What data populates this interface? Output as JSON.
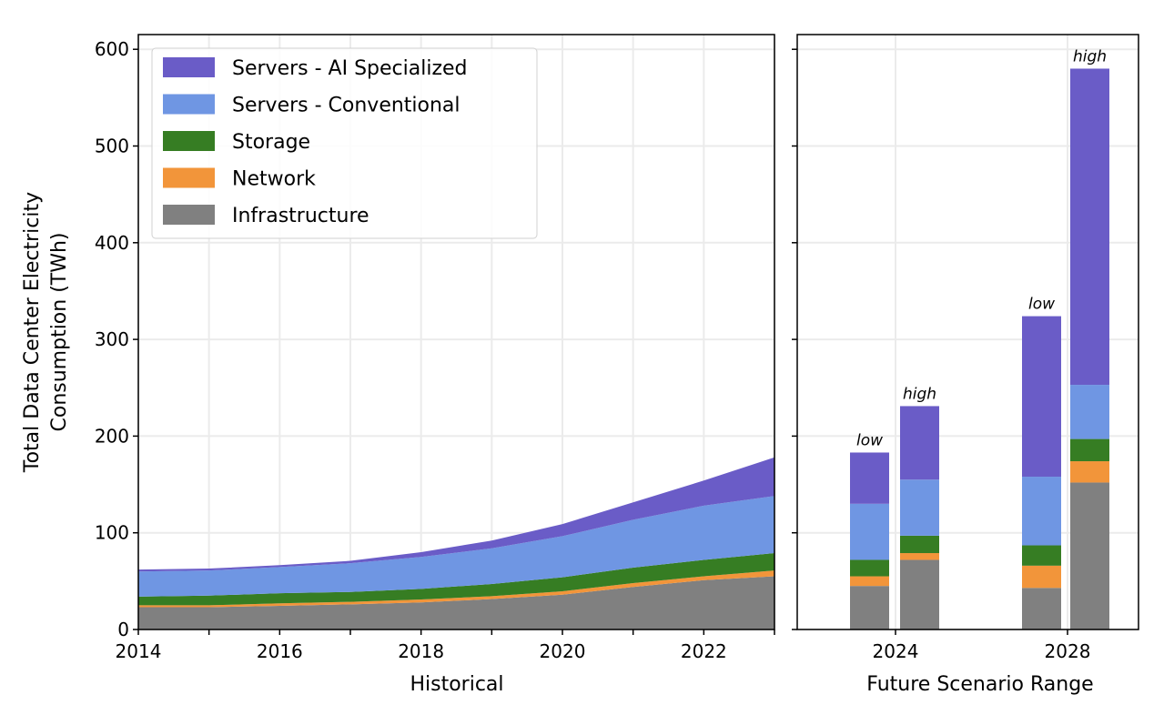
{
  "chart_data": [
    {
      "type": "area",
      "stacked": true,
      "xlabel": "Historical",
      "ylabel": "Total Data Center Electricity\nConsumption (TWh)",
      "xlim": [
        2014,
        2023
      ],
      "ylim": [
        0,
        620
      ],
      "xticks": [
        2014,
        2016,
        2018,
        2020,
        2022
      ],
      "yticks": [
        0,
        100,
        200,
        300,
        400,
        500,
        600
      ],
      "grid": true,
      "legend_placement": "top-left",
      "x": [
        2014,
        2015,
        2016,
        2017,
        2018,
        2019,
        2020,
        2021,
        2022,
        2023
      ],
      "series": [
        {
          "name": "Infrastructure",
          "color": "#808080",
          "values": [
            23,
            23,
            24.5,
            26,
            28,
            31.5,
            36,
            44,
            51,
            55
          ]
        },
        {
          "name": "Network",
          "color": "#f2953a",
          "values": [
            2,
            2,
            2.5,
            2.6,
            3,
            3,
            3.5,
            4,
            4,
            6
          ]
        },
        {
          "name": "Storage",
          "color": "#367d23",
          "values": [
            9,
            10,
            10.5,
            10.2,
            11,
            12.5,
            14.5,
            16,
            17,
            18
          ]
        },
        {
          "name": "Servers - Conventional",
          "color": "#6f96e3",
          "values": [
            26,
            26,
            27,
            29.7,
            33,
            37,
            42.5,
            49.5,
            56,
            59
          ]
        },
        {
          "name": "Servers - AI Specialized",
          "color": "#6a5cc7",
          "values": [
            2,
            2,
            2,
            2.5,
            5,
            8,
            12.5,
            18,
            26,
            40
          ]
        }
      ]
    },
    {
      "type": "bar",
      "stacked": true,
      "xlabel": "Future Scenario Range",
      "xticks": [
        "2024",
        "2028"
      ],
      "ylim": [
        0,
        620
      ],
      "grid": true,
      "bars": [
        {
          "year": "2024",
          "label": "low",
          "values": [
            45,
            10,
            17,
            58,
            53
          ]
        },
        {
          "year": "2024",
          "label": "high",
          "values": [
            72,
            7,
            18,
            58,
            76
          ]
        },
        {
          "year": "2028",
          "label": "low",
          "values": [
            43,
            23,
            21,
            71,
            166
          ]
        },
        {
          "year": "2028",
          "label": "high",
          "values": [
            152,
            22,
            23,
            56,
            327
          ]
        }
      ],
      "stack_order": [
        "Infrastructure",
        "Network",
        "Storage",
        "Servers - Conventional",
        "Servers - AI Specialized"
      ]
    }
  ],
  "legend": [
    {
      "label": "Servers - AI Specialized",
      "color": "#6a5cc7"
    },
    {
      "label": "Servers - Conventional",
      "color": "#6f96e3"
    },
    {
      "label": "Storage",
      "color": "#367d23"
    },
    {
      "label": "Network",
      "color": "#f2953a"
    },
    {
      "label": "Infrastructure",
      "color": "#808080"
    }
  ]
}
